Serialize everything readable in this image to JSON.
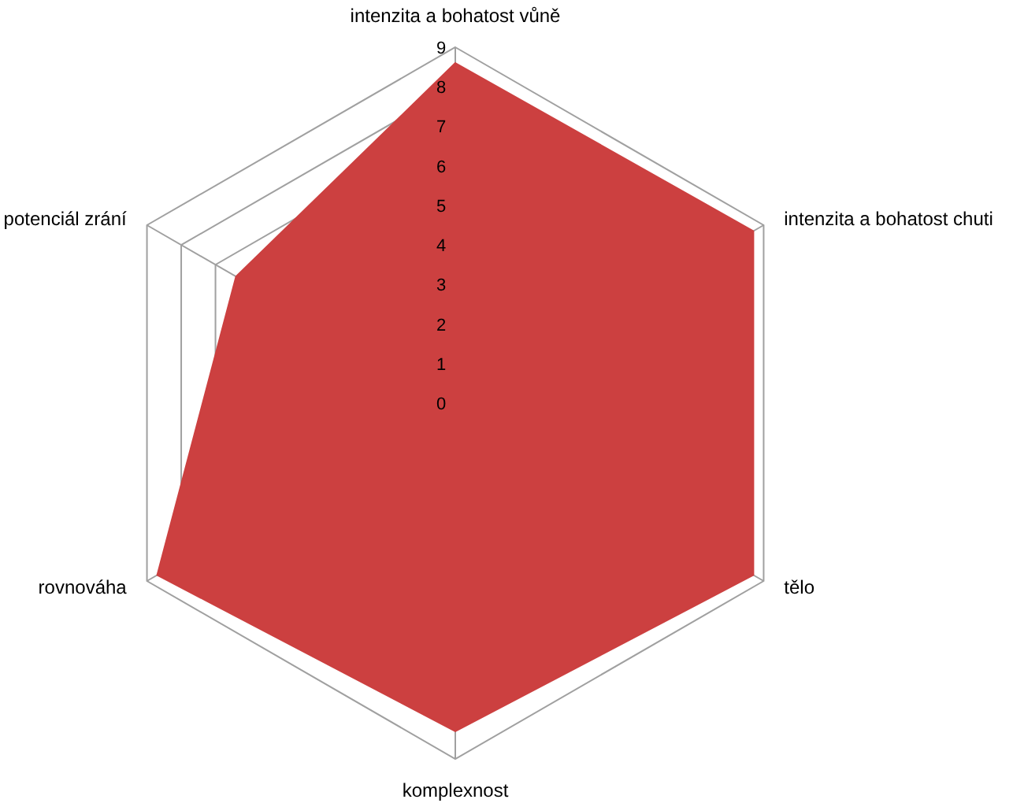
{
  "chart_data": {
    "type": "radar",
    "categories": [
      "intenzita a bohatost vůně",
      "intenzita a bohatost chuti",
      "tělo",
      "komplexnost",
      "rovnováha",
      "potenciál zrání"
    ],
    "series": [
      {
        "color": "#cc4040",
        "values": [
          8.6,
          8.7,
          8.7,
          8.3,
          8.7,
          6.4
        ]
      }
    ],
    "ylim": [
      0,
      9
    ],
    "yticks": [
      0,
      1,
      2,
      3,
      4,
      5,
      6,
      7,
      8,
      9
    ],
    "grid": true
  }
}
